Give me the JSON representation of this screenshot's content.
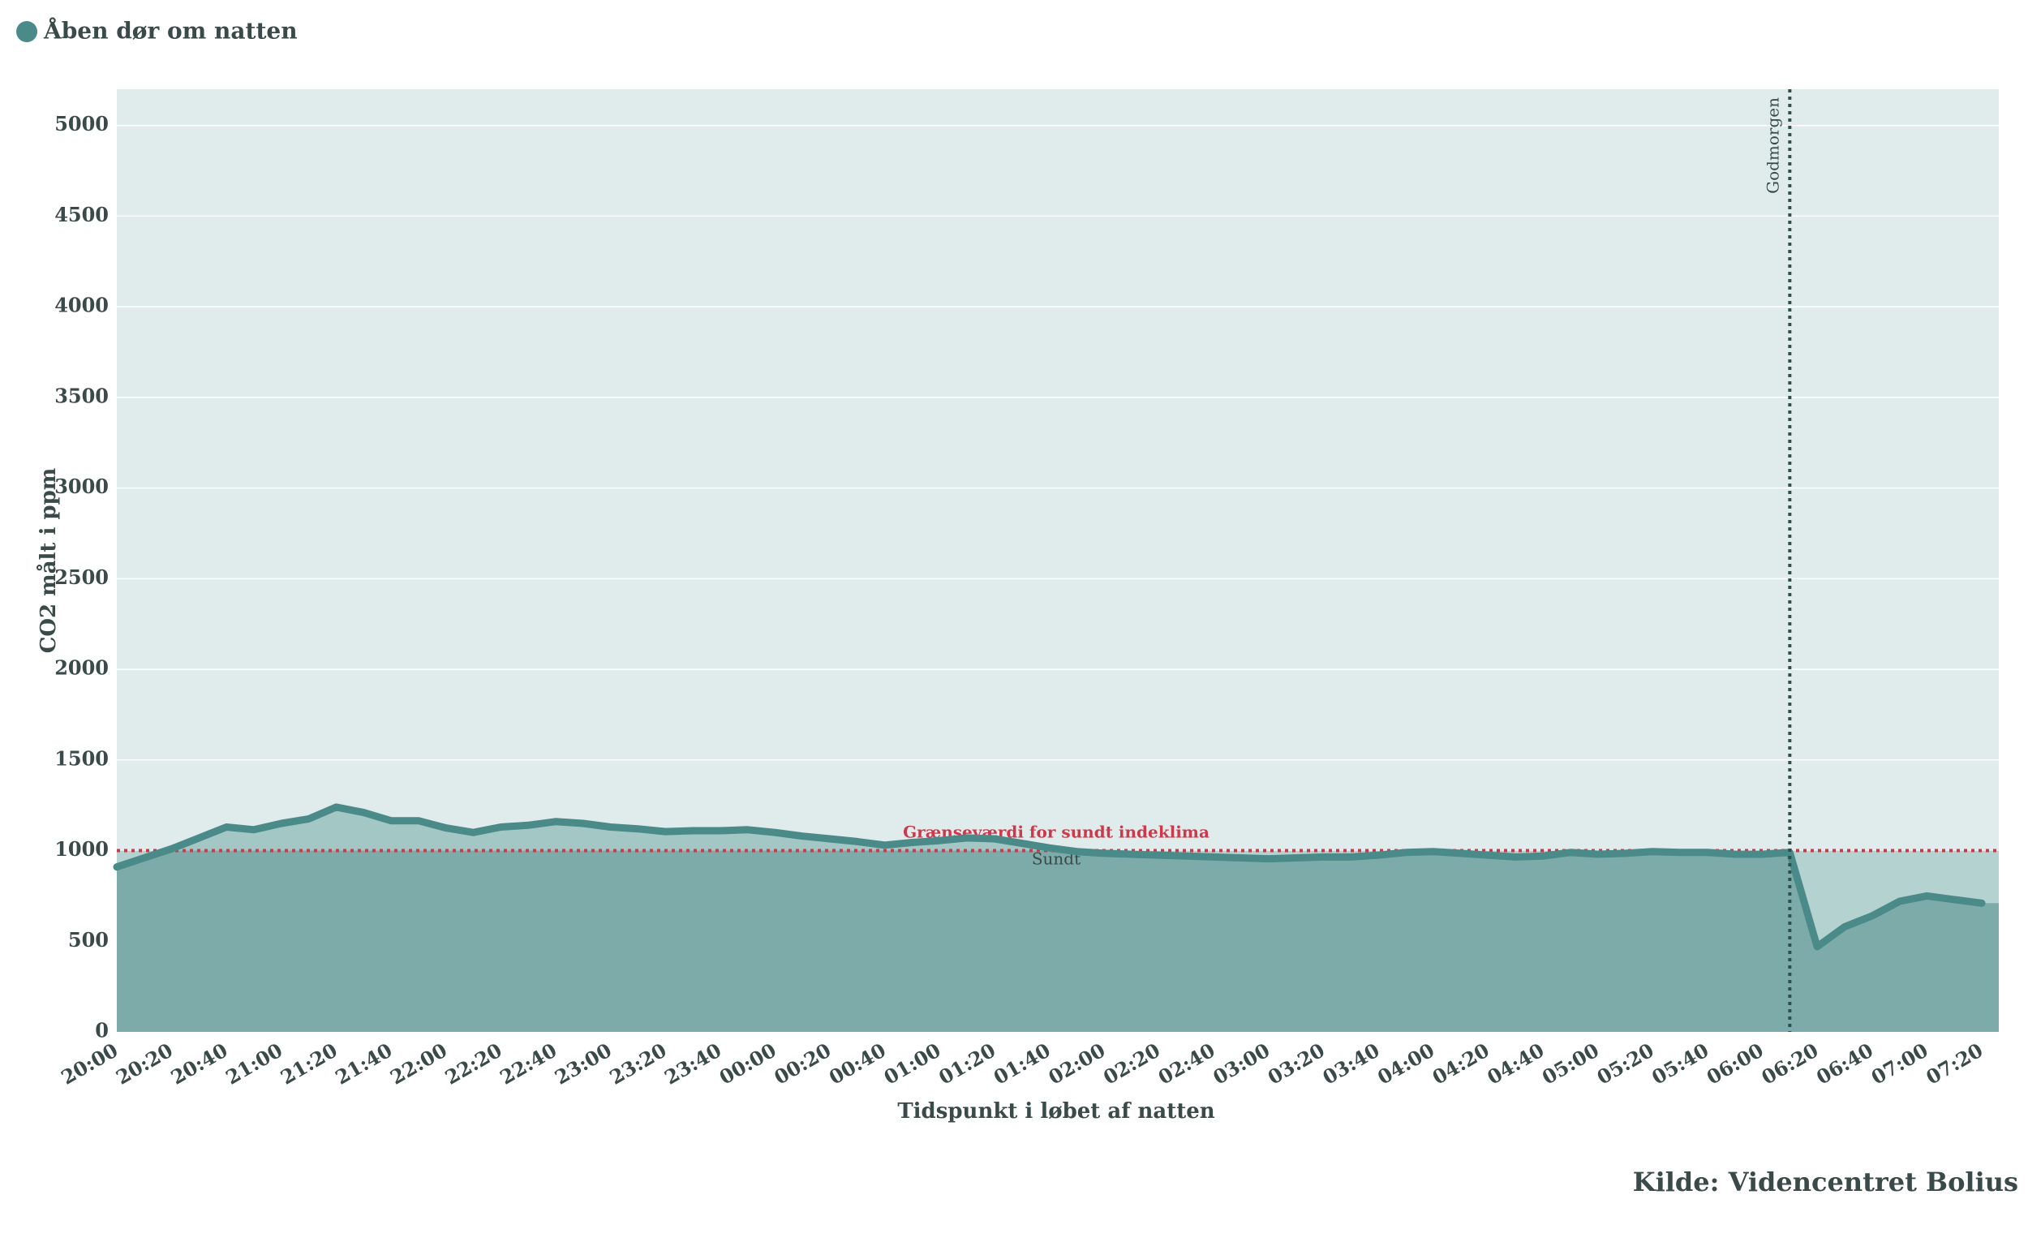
{
  "chart_data": {
    "type": "line",
    "series": [
      {
        "name": "Åben dør om natten",
        "color": "#4a8a88",
        "values": [
          910,
          960,
          1010,
          1070,
          1130,
          1115,
          1150,
          1175,
          1240,
          1210,
          1165,
          1165,
          1125,
          1100,
          1130,
          1140,
          1160,
          1150,
          1130,
          1120,
          1105,
          1110,
          1110,
          1115,
          1100,
          1080,
          1065,
          1050,
          1030,
          1045,
          1055,
          1070,
          1065,
          1040,
          1015,
          995,
          985,
          980,
          975,
          970,
          965,
          960,
          955,
          960,
          965,
          965,
          975,
          990,
          995,
          985,
          975,
          965,
          970,
          990,
          980,
          985,
          995,
          990,
          990,
          980,
          980,
          990,
          470,
          580,
          640,
          720,
          750,
          730,
          710
        ]
      }
    ],
    "categories": [
      "20:00",
      null,
      "20:20",
      null,
      "20:40",
      null,
      "21:00",
      null,
      "21:20",
      null,
      "21:40",
      null,
      "22:00",
      null,
      "22:20",
      null,
      "22:40",
      null,
      "23:00",
      null,
      "23:20",
      null,
      "23:40",
      null,
      "00:00",
      null,
      "00:20",
      null,
      "00:40",
      null,
      "01:00",
      null,
      "01:20",
      null,
      "01:40",
      null,
      "02:00",
      null,
      "02:20",
      null,
      "02:40",
      null,
      "03:00",
      null,
      "03:20",
      null,
      "03:40",
      null,
      "04:00",
      null,
      "04:20",
      null,
      "04:40",
      null,
      "05:00",
      null,
      "05:20",
      null,
      "05:40",
      null,
      "06:00",
      null,
      "06:20",
      null,
      "06:40",
      null,
      "07:00",
      null,
      "07:20"
    ],
    "ylim": [
      0,
      5200
    ],
    "yticks": [
      0,
      500,
      1000,
      1500,
      2000,
      2500,
      3000,
      3500,
      4000,
      4500,
      5000
    ],
    "grid": true,
    "xlabel": "Tidspunkt i løbet af natten",
    "ylabel": "CO2 målt i ppm",
    "threshold": {
      "value": 1000,
      "label": "Grænseværdi for sundt indeklima",
      "below_label": "Sundt",
      "color": "#d0374a"
    },
    "vline": {
      "index": 61,
      "label": "Godmorgen"
    },
    "source": "Kilde: Videncentret Bolius"
  }
}
